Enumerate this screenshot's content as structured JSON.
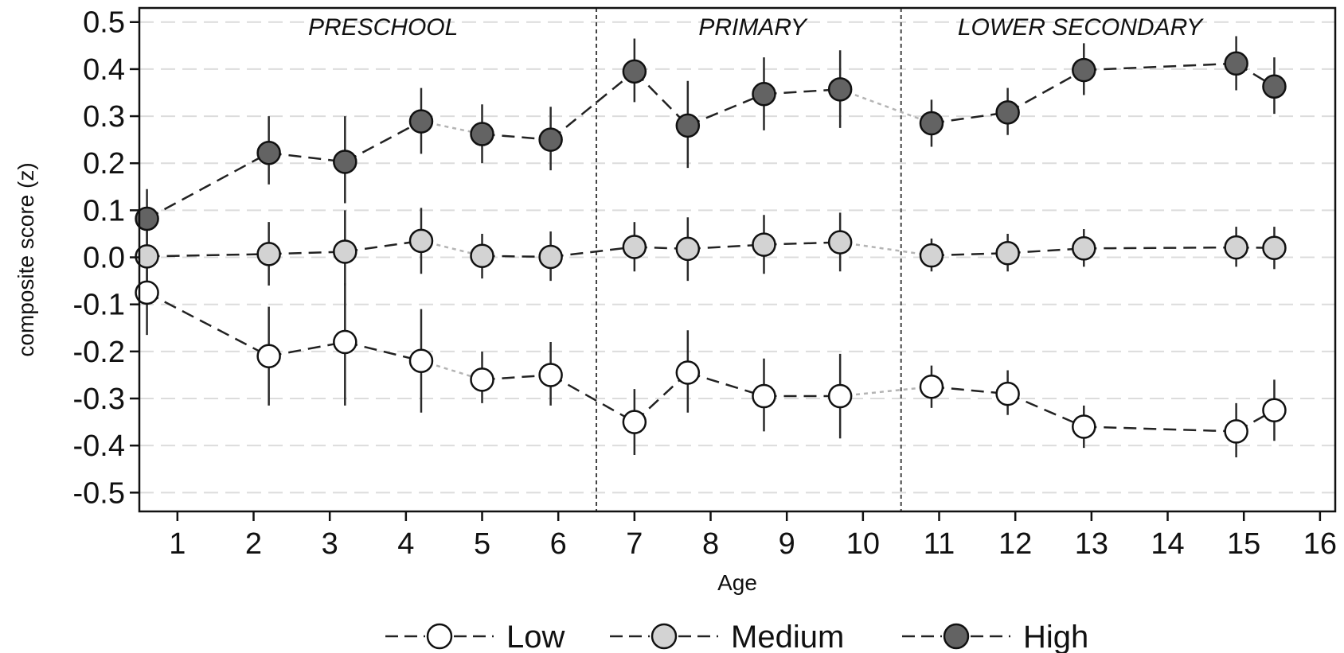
{
  "chart_data": {
    "type": "line",
    "xlabel": "Age",
    "ylabel": "composite score (z)",
    "xlim": [
      0.5,
      16.2
    ],
    "ylim": [
      -0.54,
      0.53
    ],
    "x_ticks": [
      1,
      2,
      3,
      4,
      5,
      6,
      7,
      8,
      9,
      10,
      11,
      12,
      13,
      14,
      15,
      16
    ],
    "y_ticks": [
      -0.5,
      -0.4,
      -0.3,
      -0.2,
      -0.1,
      0.0,
      0.1,
      0.2,
      0.3,
      0.4,
      0.5
    ],
    "y_tick_labels": [
      "-0.5",
      "-0.4",
      "-0.3",
      "-0.2",
      "-0.1",
      "0.0",
      "0.1",
      "0.2",
      "0.3",
      "0.4",
      "0.5"
    ],
    "grid": "horizontal dashed",
    "legend_position": "bottom",
    "phases": [
      {
        "label": "PRESCHOOL",
        "center": 3.7
      },
      {
        "label": "PRIMARY",
        "center": 8.55
      },
      {
        "label": "LOWER SECONDARY",
        "center": 12.85
      }
    ],
    "phase_boundaries": [
      6.5,
      10.5
    ],
    "x": [
      0.6,
      2.2,
      3.2,
      4.2,
      5.0,
      5.9,
      7.0,
      7.7,
      8.7,
      9.7,
      10.9,
      11.9,
      12.9,
      14.9,
      15.4
    ],
    "segment_styles": [
      "dashed",
      "dashed",
      "dashed",
      "dotted",
      "dashed",
      "dashed",
      "dashed",
      "dashed",
      "dashed",
      "dotted",
      "dashed",
      "dashed",
      "dashed",
      "dashed"
    ],
    "series": [
      {
        "name": "Low",
        "fill": "#ffffff",
        "values": [
          -0.075,
          -0.21,
          -0.18,
          -0.22,
          -0.26,
          -0.25,
          -0.35,
          -0.245,
          -0.295,
          -0.295,
          -0.275,
          -0.29,
          -0.36,
          -0.37,
          -0.325
        ],
        "ci_low": [
          -0.165,
          -0.315,
          -0.315,
          -0.33,
          -0.31,
          -0.315,
          -0.42,
          -0.33,
          -0.37,
          -0.385,
          -0.32,
          -0.335,
          -0.405,
          -0.425,
          -0.39
        ],
        "ci_high": [
          0.0,
          -0.105,
          -0.055,
          -0.11,
          -0.2,
          -0.18,
          -0.28,
          -0.155,
          -0.215,
          -0.205,
          -0.23,
          -0.24,
          -0.315,
          -0.31,
          -0.26
        ]
      },
      {
        "name": "Medium",
        "fill": "#d3d3d3",
        "values": [
          0.002,
          0.007,
          0.012,
          0.035,
          0.003,
          0.001,
          0.022,
          0.018,
          0.027,
          0.032,
          0.004,
          0.009,
          0.019,
          0.021,
          0.02
        ],
        "ci_low": [
          -0.05,
          -0.06,
          -0.06,
          -0.035,
          -0.045,
          -0.05,
          -0.03,
          -0.05,
          -0.035,
          -0.03,
          -0.03,
          -0.03,
          -0.02,
          -0.02,
          -0.025
        ],
        "ci_high": [
          0.06,
          0.075,
          0.1,
          0.105,
          0.05,
          0.055,
          0.075,
          0.085,
          0.09,
          0.095,
          0.04,
          0.05,
          0.06,
          0.065,
          0.065
        ]
      },
      {
        "name": "High",
        "fill": "#636363",
        "values": [
          0.082,
          0.222,
          0.203,
          0.289,
          0.262,
          0.25,
          0.395,
          0.28,
          0.347,
          0.357,
          0.285,
          0.308,
          0.398,
          0.412,
          0.363
        ],
        "ci_low": [
          0.02,
          0.155,
          0.115,
          0.22,
          0.2,
          0.185,
          0.33,
          0.19,
          0.27,
          0.275,
          0.235,
          0.26,
          0.345,
          0.355,
          0.305
        ],
        "ci_high": [
          0.145,
          0.3,
          0.3,
          0.36,
          0.325,
          0.32,
          0.465,
          0.375,
          0.425,
          0.44,
          0.335,
          0.36,
          0.455,
          0.47,
          0.425
        ]
      }
    ]
  }
}
